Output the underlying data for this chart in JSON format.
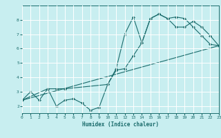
{
  "xlabel": "Humidex (Indice chaleur)",
  "bg_color": "#c8eef0",
  "grid_color": "#ffffff",
  "line_color": "#1a6b6b",
  "series1_x": [
    0,
    1,
    2,
    3,
    4,
    5,
    6,
    7,
    8,
    9,
    10,
    11,
    12,
    13,
    14,
    15,
    16,
    17,
    18,
    19,
    20,
    21,
    22,
    23
  ],
  "series1_y": [
    2.4,
    3.0,
    2.4,
    3.2,
    2.0,
    2.4,
    2.5,
    2.2,
    1.7,
    1.9,
    3.5,
    4.6,
    7.0,
    8.2,
    6.4,
    8.1,
    8.4,
    8.1,
    8.2,
    8.1,
    7.5,
    6.9,
    6.3,
    6.2
  ],
  "series2_x": [
    0,
    3,
    4,
    5,
    10,
    11,
    12,
    13,
    14,
    15,
    16,
    17,
    18,
    19,
    20,
    21,
    22,
    23
  ],
  "series2_y": [
    2.4,
    3.2,
    3.2,
    3.2,
    3.5,
    4.5,
    4.6,
    5.5,
    6.4,
    8.1,
    8.4,
    8.1,
    7.5,
    7.5,
    7.9,
    7.5,
    6.9,
    6.2
  ],
  "series3_x": [
    0,
    23
  ],
  "series3_y": [
    2.4,
    6.2
  ],
  "xlim": [
    0,
    23
  ],
  "ylim": [
    1.5,
    9.0
  ],
  "yticks": [
    2,
    3,
    4,
    5,
    6,
    7,
    8
  ],
  "xticks": [
    0,
    1,
    2,
    3,
    4,
    5,
    6,
    7,
    8,
    9,
    10,
    11,
    12,
    13,
    14,
    15,
    16,
    17,
    18,
    19,
    20,
    21,
    22,
    23
  ]
}
